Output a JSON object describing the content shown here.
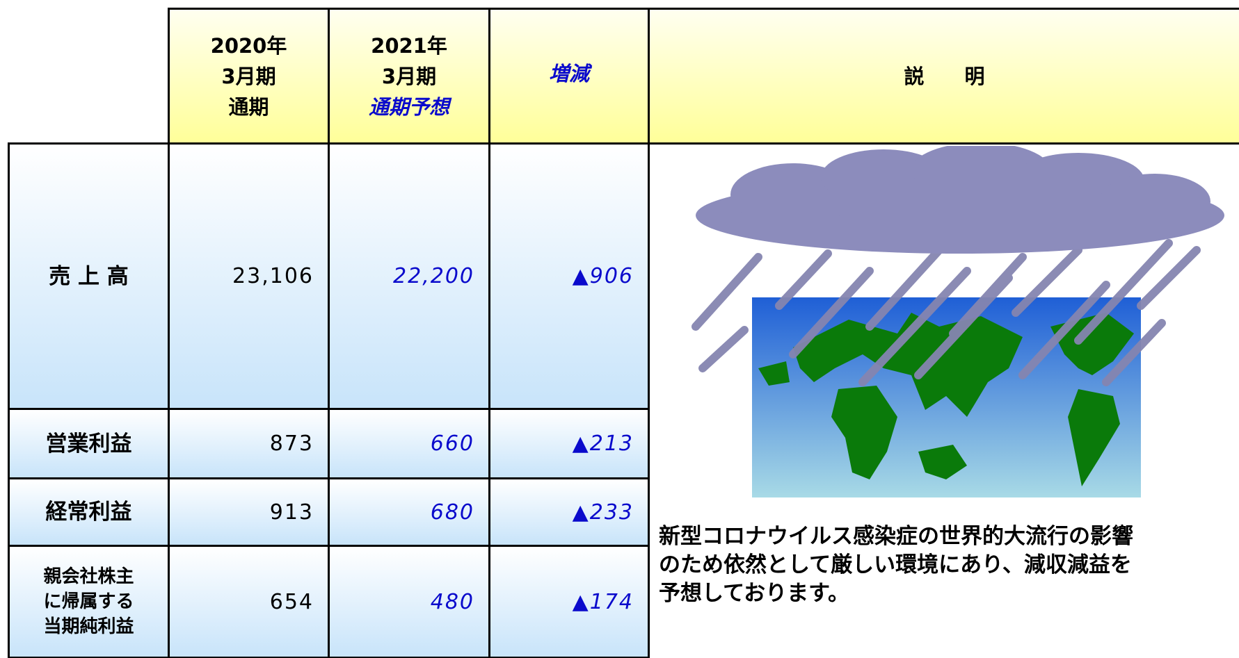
{
  "table": {
    "header": {
      "col_2020": [
        "2020年",
        "3月期",
        "通期"
      ],
      "col_2021": [
        "2021年",
        "3月期"
      ],
      "col_2021_forecast": "通期予想",
      "col_change": "増減",
      "col_description": "説　　明"
    },
    "rows": [
      {
        "label": [
          "売 上 高"
        ],
        "actual": "23,106",
        "forecast": "22,200",
        "change": "▲906"
      },
      {
        "label": [
          "営業利益"
        ],
        "actual": "873",
        "forecast": "660",
        "change": "▲213"
      },
      {
        "label": [
          "経常利益"
        ],
        "actual": "913",
        "forecast": "680",
        "change": "▲233"
      },
      {
        "label": [
          "親会社株主",
          "に帰属する",
          "当期純利益"
        ],
        "actual": "654",
        "forecast": "480",
        "change": "▲174"
      }
    ],
    "description": [
      "新型コロナウイルス感染症の世界的大流行の影響",
      "のため依然として厳しい環境にあり、減収減益を",
      "予想しております。"
    ]
  }
}
